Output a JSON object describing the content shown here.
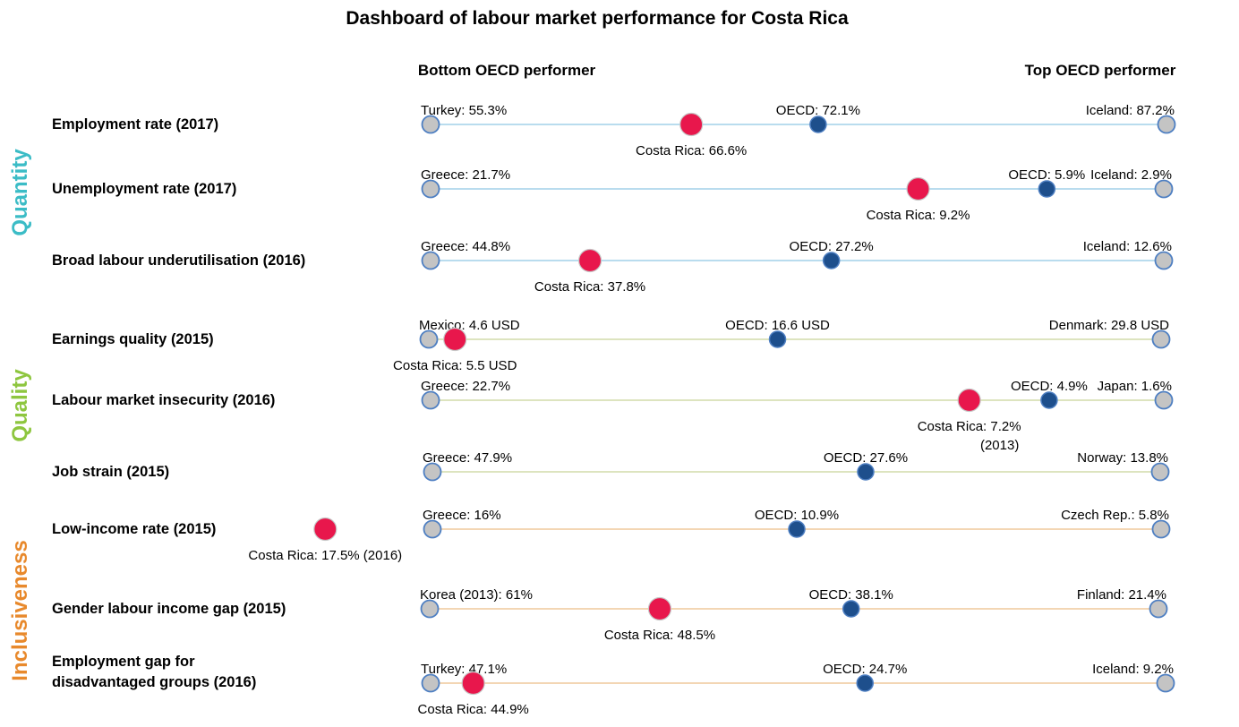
{
  "chart_data": {
    "type": "dot",
    "title": "Dashboard of labour market performance for Costa Rica",
    "bottom_label": "Bottom OECD performer",
    "top_label": "Top OECD performer",
    "colors": {
      "costa_rica": "#e8174c",
      "oecd": "#1e4f8c",
      "endpoint": "#c4c4c4",
      "endpoint_stroke": "#4e7fc2",
      "quantity": "#3bbcc6",
      "quality": "#8ec63f",
      "inclusiveness": "#e8892c",
      "line_quantity": "#b9dcee",
      "line_quality": "#dde4bf",
      "line_inclusiveness": "#f3d6b4"
    },
    "groups": [
      {
        "name": "Quantity",
        "color_key": "quantity",
        "rows": [
          0,
          1,
          2
        ]
      },
      {
        "name": "Quality",
        "color_key": "quality",
        "rows": [
          3,
          4,
          5
        ]
      },
      {
        "name": "Inclusiveness",
        "color_key": "inclusiveness",
        "rows": [
          6,
          7,
          8
        ]
      }
    ],
    "indicators": [
      {
        "label": "Employment rate (2017)",
        "bottom": {
          "value": 55.3,
          "text": "Turkey: 55.3%"
        },
        "top": {
          "value": 87.2,
          "text": "Iceland: 87.2%"
        },
        "oecd": {
          "value": 72.1,
          "text": "OECD: 72.1%"
        },
        "costa_rica": {
          "value": 66.6,
          "text": "Costa Rica: 66.6%"
        }
      },
      {
        "label": "Unemployment rate (2017)",
        "bottom": {
          "value": 21.7,
          "text": "Greece: 21.7%"
        },
        "top": {
          "value": 2.9,
          "text": "Iceland: 2.9%"
        },
        "oecd": {
          "value": 5.9,
          "text": "OECD: 5.9%"
        },
        "costa_rica": {
          "value": 9.2,
          "text": "Costa Rica: 9.2%"
        }
      },
      {
        "label": "Broad labour underutilisation (2016)",
        "bottom": {
          "value": 44.8,
          "text": "Greece: 44.8%"
        },
        "top": {
          "value": 12.6,
          "text": "Iceland: 12.6%"
        },
        "oecd": {
          "value": 27.2,
          "text": "OECD: 27.2%"
        },
        "costa_rica": {
          "value": 37.8,
          "text": "Costa Rica: 37.8%"
        }
      },
      {
        "label": "Earnings quality (2015)",
        "bottom": {
          "value": 4.6,
          "text": "Mexico: 4.6 USD"
        },
        "top": {
          "value": 29.8,
          "text": "Denmark: 29.8 USD"
        },
        "oecd": {
          "value": 16.6,
          "text": "OECD: 16.6 USD"
        },
        "costa_rica": {
          "value": 5.5,
          "text": "Costa Rica: 5.5 USD"
        }
      },
      {
        "label": "Labour market insecurity (2016)",
        "bottom": {
          "value": 22.7,
          "text": "Greece: 22.7%"
        },
        "top": {
          "value": 1.6,
          "text": "Japan: 1.6%"
        },
        "oecd": {
          "value": 4.9,
          "text": "OECD: 4.9%"
        },
        "costa_rica": {
          "value": 7.2,
          "text": "Costa Rica: 7.2%",
          "note": "(2013)"
        }
      },
      {
        "label": "Job strain (2015)",
        "bottom": {
          "value": 47.9,
          "text": "Greece: 47.9%"
        },
        "top": {
          "value": 13.8,
          "text": "Norway: 13.8%"
        },
        "oecd": {
          "value": 27.6,
          "text": "OECD: 27.6%"
        }
      },
      {
        "label": "Low-income rate  (2015)",
        "bottom": {
          "value": 16,
          "text": "Greece: 16%"
        },
        "top": {
          "value": 5.8,
          "text": "Czech Rep.: 5.8%"
        },
        "oecd": {
          "value": 10.9,
          "text": "OECD: 10.9%"
        },
        "costa_rica": {
          "value": 17.5,
          "text": "Costa Rica: 17.5% (2016)"
        }
      },
      {
        "label": "Gender labour income gap  (2015)",
        "bottom": {
          "value": 61,
          "text": "Korea (2013): 61%"
        },
        "top": {
          "value": 21.4,
          "text": "Finland: 21.4%"
        },
        "oecd": {
          "value": 38.1,
          "text": "OECD: 38.1%"
        },
        "costa_rica": {
          "value": 48.5,
          "text": "Costa Rica: 48.5%"
        }
      },
      {
        "label": "Employment gap for\ndisadvantaged groups (2016)",
        "bottom": {
          "value": 47.1,
          "text": "Turkey: 47.1%"
        },
        "top": {
          "value": 9.2,
          "text": "Iceland: 9.2%"
        },
        "oecd": {
          "value": 24.7,
          "text": "OECD: 24.7%"
        },
        "costa_rica": {
          "value": 44.9,
          "text": "Costa Rica: 44.9%"
        }
      }
    ]
  }
}
